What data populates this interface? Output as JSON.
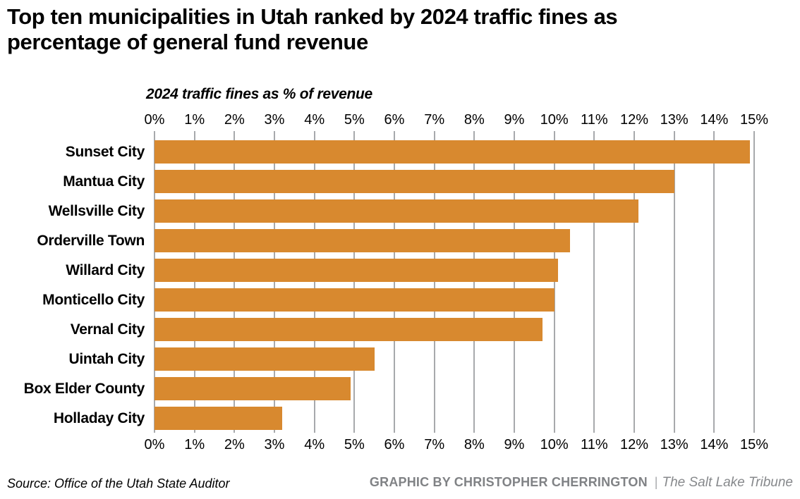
{
  "title": "Top ten municipalities in Utah ranked by 2024 traffic fines as percentage of general fund revenue",
  "chart_data": {
    "type": "bar",
    "orientation": "horizontal",
    "axis_title": "2024 traffic fines as % of revenue",
    "categories": [
      "Sunset City",
      "Mantua City",
      "Wellsville City",
      "Orderville Town",
      "Willard City",
      "Monticello City",
      "Vernal City",
      "Uintah City",
      "Box Elder County",
      "Holladay City"
    ],
    "values": [
      14.9,
      13.0,
      12.1,
      10.4,
      10.1,
      10.0,
      9.7,
      5.5,
      4.9,
      3.2
    ],
    "value_unit": "%",
    "xlim": [
      0,
      15
    ],
    "tick_step": 1,
    "x_tick_labels": [
      "0%",
      "1%",
      "2%",
      "3%",
      "4%",
      "5%",
      "6%",
      "7%",
      "8%",
      "9%",
      "10%",
      "11%",
      "12%",
      "13%",
      "14%",
      "15%"
    ],
    "grid": true,
    "axis_label_position": "top and bottom",
    "legend": "none",
    "bar_color": "#d8892f",
    "gridline_color": "#a7a9ac",
    "text_color": "#000000"
  },
  "footer": {
    "source": "Source: Office of the Utah State Auditor",
    "credit": "GRAPHIC BY CHRISTOPHER CHERRINGTON",
    "separator": "|",
    "publication": "The Salt Lake Tribune"
  }
}
